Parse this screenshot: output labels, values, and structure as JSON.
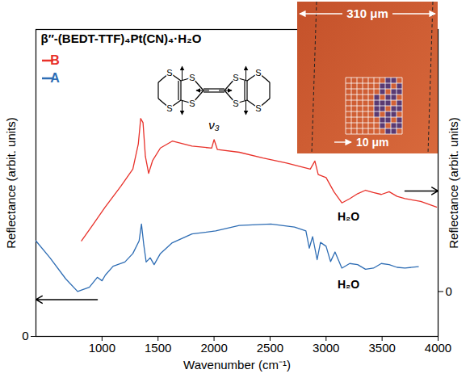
{
  "chart_data": {
    "type": "line",
    "title": "β″-(BEDT-TTF)₄Pt(CN)₄·H₂O",
    "x_label": "Wavenumber (cm⁻¹)",
    "y_label": "Reflectance (arbit. units)",
    "y2_label": "Reflectance (arbit. units)",
    "xlim": [
      410,
      4000
    ],
    "xticks": [
      1000,
      1500,
      2000,
      2500,
      3000,
      3500,
      4000
    ],
    "ylim": [
      0,
      8
    ],
    "yticks": [
      0
    ],
    "y2lim": [
      -1.17,
      6.83
    ],
    "y2ticks": [
      0
    ],
    "grid": false,
    "legend": "top-left",
    "series": [
      {
        "name": "B",
        "color": "#e8312a",
        "axis": "y2",
        "x": [
          817,
          923,
          1028,
          1169,
          1275,
          1324,
          1345,
          1366,
          1387,
          1416,
          1451,
          1521,
          1627,
          1803,
          1979,
          2000,
          2030,
          2225,
          2437,
          2648,
          2859,
          2900,
          2930,
          3000,
          3070,
          3141,
          3211,
          3282,
          3352,
          3423,
          3493,
          3563,
          3634,
          3704,
          3845,
          3986
        ],
        "values": [
          1.32,
          1.76,
          2.2,
          2.75,
          3.19,
          3.85,
          4.51,
          4.4,
          3.52,
          3.08,
          3.41,
          3.74,
          3.92,
          3.79,
          3.74,
          3.96,
          3.7,
          3.63,
          3.48,
          3.35,
          3.19,
          3.4,
          3.05,
          2.97,
          2.6,
          2.31,
          2.42,
          2.55,
          2.64,
          2.58,
          2.53,
          2.6,
          2.48,
          2.42,
          2.35,
          2.2
        ]
      },
      {
        "name": "A",
        "color": "#2e6db4",
        "axis": "y",
        "x": [
          410,
          535,
          676,
          782,
          887,
          958,
          1000,
          1030,
          1099,
          1204,
          1275,
          1331,
          1352,
          1373,
          1394,
          1430,
          1465,
          1521,
          1627,
          1803,
          2014,
          2225,
          2507,
          2718,
          2820,
          2850,
          2880,
          2920,
          2950,
          3000,
          3040,
          3080,
          3141,
          3211,
          3282,
          3352,
          3423,
          3493,
          3563,
          3634,
          3704,
          3824
        ],
        "values": [
          2.49,
          2.05,
          1.5,
          1.17,
          1.28,
          1.54,
          1.45,
          1.6,
          1.83,
          1.94,
          2.16,
          2.49,
          2.93,
          2.38,
          1.94,
          2.05,
          1.87,
          2.16,
          2.44,
          2.67,
          2.75,
          2.89,
          2.93,
          2.85,
          2.75,
          2.3,
          2.6,
          2.0,
          2.45,
          2.35,
          1.95,
          2.2,
          1.78,
          1.9,
          1.87,
          1.75,
          1.78,
          1.9,
          1.87,
          1.8,
          1.78,
          1.82
        ]
      }
    ],
    "annotations": [
      {
        "text": "H₂O",
        "x": 3200,
        "y": 1.95,
        "axis": "y2"
      },
      {
        "text": "H₂O",
        "x": 3200,
        "y": 1.35,
        "axis": "y"
      }
    ],
    "insets": {
      "molecule_label": "ν₃",
      "atom_label": "S",
      "scale_bar": "310 μm",
      "grid_bar": "10 μm"
    }
  }
}
